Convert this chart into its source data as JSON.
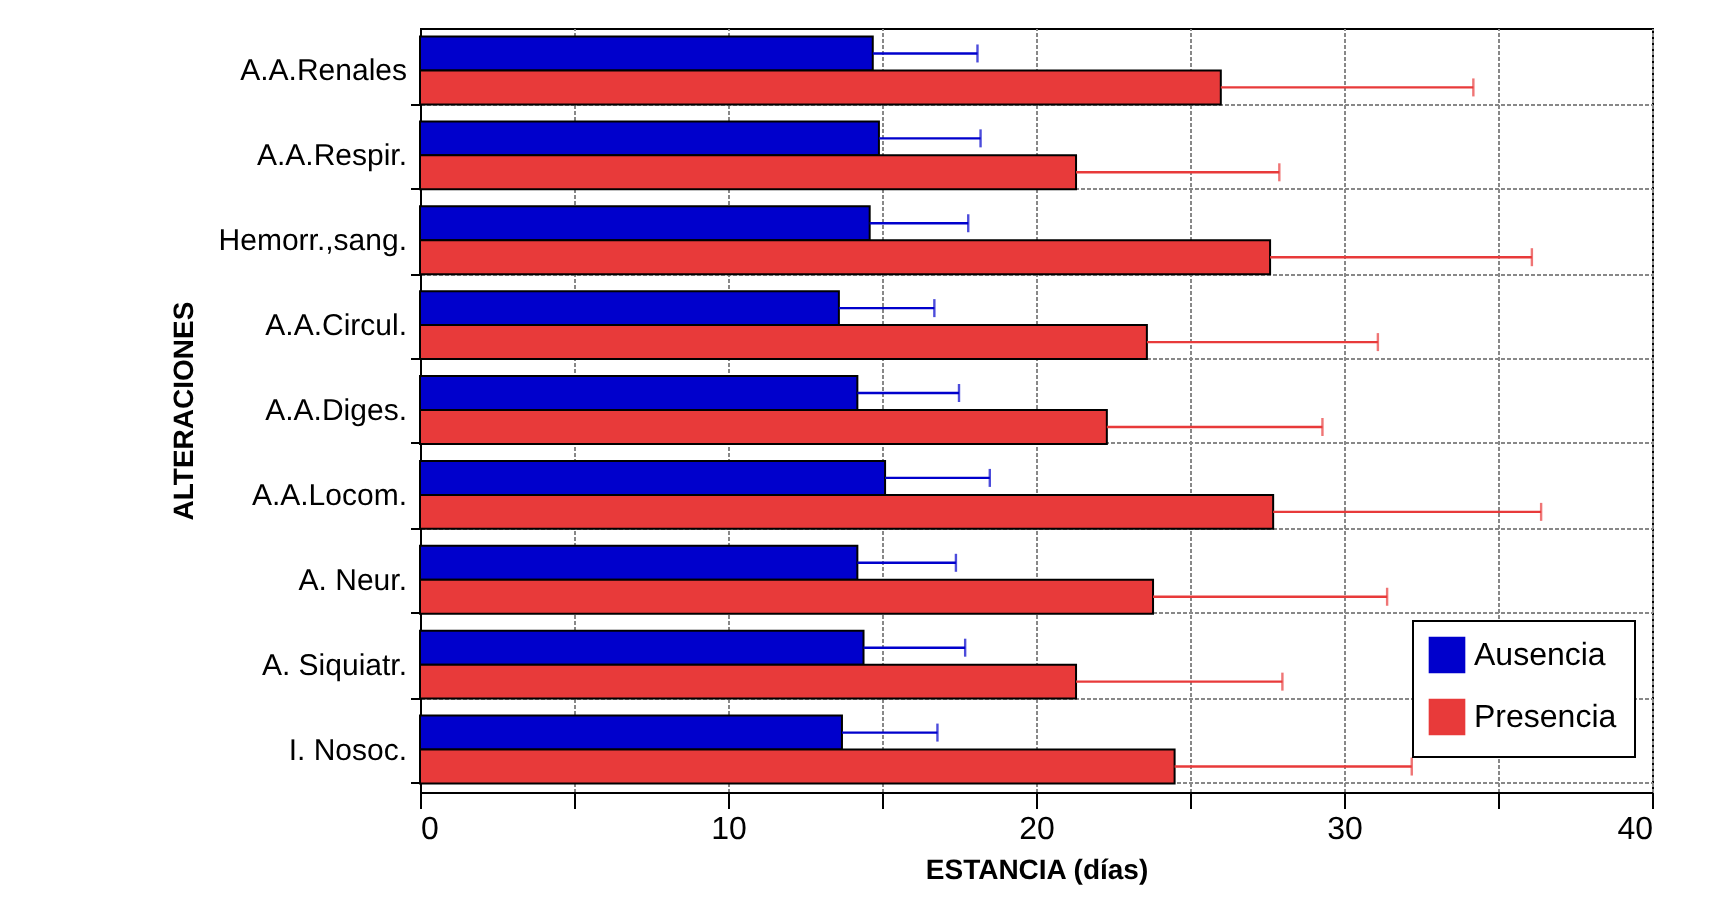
{
  "chart_data": {
    "type": "bar",
    "orientation": "horizontal",
    "xlabel": "ESTANCIA (días)",
    "ylabel": "ALTERACIONES",
    "categories": [
      "A.A.Renales",
      "A.A.Respir.",
      "Hemorr.,sang.",
      "A.A.Circul.",
      "A.A.Diges.",
      "A.A.Locom.",
      "A. Neur.",
      "A. Siquiatr.",
      "I. Nosoc."
    ],
    "series": [
      {
        "name": "Ausencia",
        "color": "#0000cc",
        "values": [
          14.7,
          14.9,
          14.6,
          13.6,
          14.2,
          15.1,
          14.2,
          14.4,
          13.7
        ],
        "errors": [
          [
            14.7,
            18.1
          ],
          [
            14.9,
            18.2
          ],
          [
            14.6,
            17.8
          ],
          [
            13.6,
            16.7
          ],
          [
            14.2,
            17.5
          ],
          [
            15.1,
            18.5
          ],
          [
            14.2,
            17.4
          ],
          [
            14.4,
            17.7
          ],
          [
            13.7,
            16.8
          ]
        ]
      },
      {
        "name": "Presencia",
        "color": "#e83a3a",
        "values": [
          26.0,
          21.3,
          27.6,
          23.6,
          22.3,
          27.7,
          23.8,
          21.3,
          24.5
        ],
        "errors": [
          [
            26.0,
            34.2
          ],
          [
            21.3,
            27.9
          ],
          [
            27.6,
            36.1
          ],
          [
            23.6,
            31.1
          ],
          [
            22.3,
            29.3
          ],
          [
            27.7,
            36.4
          ],
          [
            23.8,
            31.4
          ],
          [
            21.3,
            28.0
          ],
          [
            24.5,
            32.2
          ]
        ]
      }
    ],
    "xlim": [
      0,
      40
    ],
    "xticks": [
      0,
      {
        "value": 5,
        "label": null
      },
      10,
      {
        "value": 15,
        "label": null
      },
      20,
      {
        "value": 25,
        "label": null
      },
      30,
      {
        "value": 35,
        "label": null
      },
      40
    ],
    "grid": true,
    "legend": "bottom right"
  }
}
